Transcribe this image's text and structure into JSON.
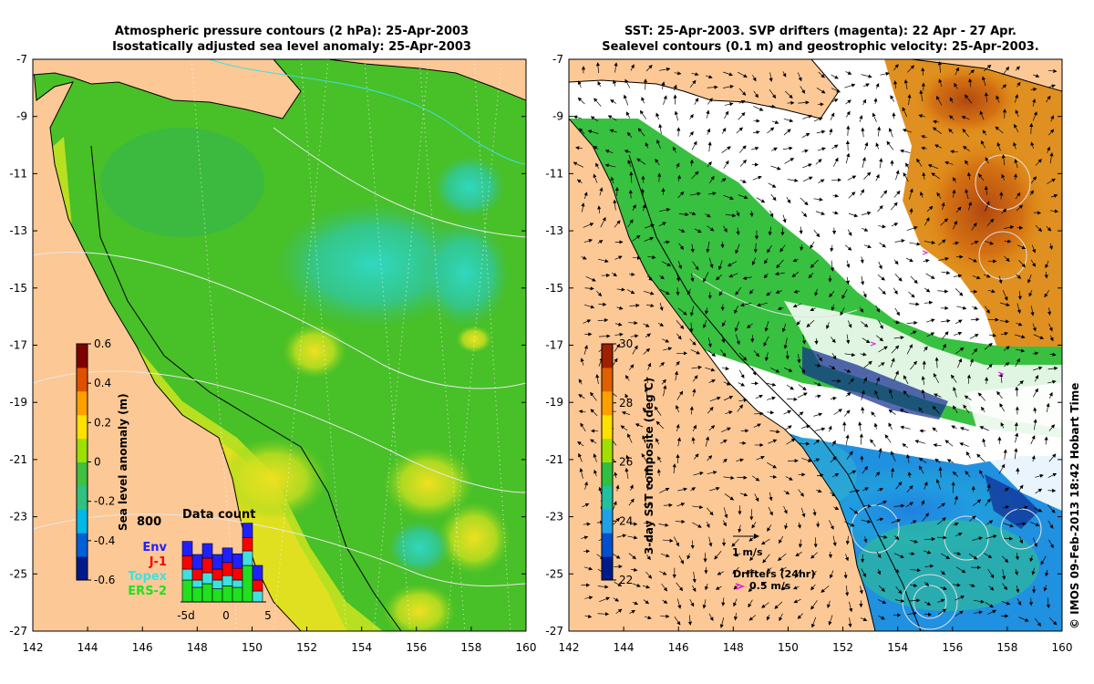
{
  "left_map": {
    "title_line1": "Atmospheric pressure contours (2 hPa): 25-Apr-2003",
    "title_line2": "Isostatically adjusted sea level anomaly: 25-Apr-2003",
    "colorbar_label": "Sea level anomaly (m)",
    "colorbar_ticks": [
      "0.6",
      "0.4",
      "0.2",
      "0",
      "-0.2",
      "-0.4",
      "-0.6"
    ],
    "colorbar_colors": [
      "#001a8c",
      "#0060d8",
      "#00b8e8",
      "#30c080",
      "#40c040",
      "#9ce000",
      "#ffe000",
      "#ffa000",
      "#e05000",
      "#800000"
    ],
    "data_count": {
      "title": "Data count",
      "y_label": "800",
      "x_labels": [
        "-5d",
        "0",
        "5"
      ],
      "legend": [
        {
          "name": "Env",
          "color": "#2020ff"
        },
        {
          "name": "J-1",
          "color": "#ff0000"
        },
        {
          "name": "Topex",
          "color": "#40e0e0"
        },
        {
          "name": "ERS-2",
          "color": "#20e020"
        }
      ],
      "bars": [
        [
          0.2,
          0.18,
          0.15,
          0.3
        ],
        [
          0.2,
          0.15,
          0.1,
          0.2
        ],
        [
          0.2,
          0.2,
          0.15,
          0.25
        ],
        [
          0.2,
          0.15,
          0.12,
          0.18
        ],
        [
          0.2,
          0.18,
          0.14,
          0.22
        ],
        [
          0.2,
          0.16,
          0.1,
          0.2
        ],
        [
          0.2,
          0.18,
          0.2,
          0.5
        ],
        [
          0.2,
          0.15,
          0.15,
          0.0
        ]
      ]
    }
  },
  "right_map": {
    "title_line1": "SST: 25-Apr-2003. SVP drifters (magenta): 22 Apr - 27 Apr.",
    "title_line2": "Sealevel contours (0.1 m) and geostrophic velocity: 25-Apr-2003.",
    "colorbar_label": "3-day SST composite (deg C)",
    "colorbar_ticks": [
      "30",
      "28",
      "26",
      "24",
      "22"
    ],
    "colorbar_colors": [
      "#001a8c",
      "#0050d0",
      "#20a0e8",
      "#20c0a0",
      "#30c040",
      "#a0e000",
      "#ffe000",
      "#ffa000",
      "#e06000",
      "#a02000"
    ],
    "velocity_label": "1 m/s",
    "drifters_label": "Drifters (24hr)",
    "drifters_speed": "0.5 m/s"
  },
  "y_ticks": [
    "-7",
    "-9",
    "-11",
    "-13",
    "-15",
    "-17",
    "-19",
    "-21",
    "-23",
    "-25",
    "-27"
  ],
  "x_ticks": [
    "142",
    "144",
    "146",
    "148",
    "150",
    "152",
    "154",
    "156",
    "158",
    "160"
  ],
  "credit": "© IMOS 09-Feb-2013 18:42 Hobart Time",
  "colors": {
    "land": "#fcc896",
    "ocean_green": "#40c020",
    "cloud": "#ffffff"
  }
}
